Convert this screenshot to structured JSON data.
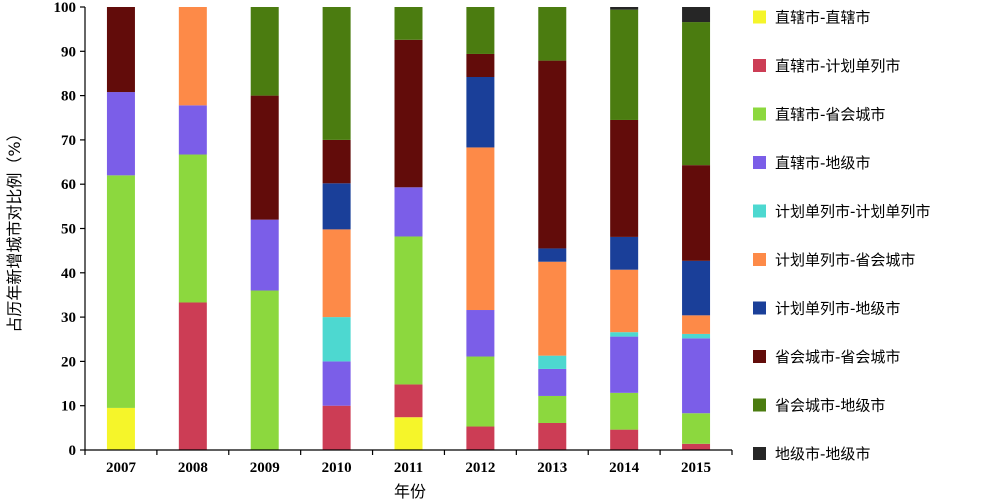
{
  "chart_data": {
    "type": "bar",
    "stacked": true,
    "xlabel": "年份",
    "ylabel": "占历年新增城市对比例（%）",
    "ylim": [
      0,
      100
    ],
    "yticks": [
      0,
      10,
      20,
      30,
      40,
      50,
      60,
      70,
      80,
      90,
      100
    ],
    "grid": false,
    "legend_position": "right",
    "categories": [
      "2007",
      "2008",
      "2009",
      "2010",
      "2011",
      "2012",
      "2013",
      "2014",
      "2015"
    ],
    "series": [
      {
        "name": "直辖市-直辖市",
        "color": "#f5f52a",
        "values": [
          9.5,
          0,
          0,
          0,
          7.4,
          0,
          0,
          0,
          0
        ]
      },
      {
        "name": "直辖市-计划单列市",
        "color": "#cc3d55",
        "values": [
          0,
          33.3,
          0,
          10,
          7.4,
          5.3,
          6.1,
          4.6,
          1.4
        ]
      },
      {
        "name": "直辖市-省会城市",
        "color": "#8cd83e",
        "values": [
          52.5,
          33.4,
          36,
          0,
          33.4,
          15.8,
          6.1,
          8.3,
          6.9
        ]
      },
      {
        "name": "直辖市-地级市",
        "color": "#7b5ee8",
        "values": [
          18.8,
          11.1,
          16,
          10,
          11.1,
          10.5,
          6.1,
          12.7,
          16.9
        ]
      },
      {
        "name": "计划单列市-计划单列市",
        "color": "#4dd8d0",
        "values": [
          0,
          0,
          0,
          10,
          0,
          0,
          3,
          1,
          1
        ]
      },
      {
        "name": "计划单列市-省会城市",
        "color": "#fd8a48",
        "values": [
          0,
          22.2,
          0,
          19.8,
          0,
          36.7,
          21.2,
          14.1,
          4.2
        ]
      },
      {
        "name": "计划单列市-地级市",
        "color": "#1a3f99",
        "values": [
          0,
          0,
          0,
          10.4,
          0,
          15.9,
          3,
          7.4,
          12.3
        ]
      },
      {
        "name": "省会城市-省会城市",
        "color": "#620c0a",
        "values": [
          19.2,
          0,
          28,
          9.8,
          33.3,
          5.2,
          42.4,
          26.4,
          21.6
        ]
      },
      {
        "name": "省会城市-地级市",
        "color": "#4b7c10",
        "values": [
          0,
          0,
          20,
          30,
          7.4,
          10.6,
          12.1,
          24.9,
          32.3
        ]
      },
      {
        "name": "地级市-地级市",
        "color": "#262626",
        "values": [
          0,
          0,
          0,
          0,
          0,
          0,
          0,
          0.6,
          3.4
        ]
      }
    ]
  }
}
